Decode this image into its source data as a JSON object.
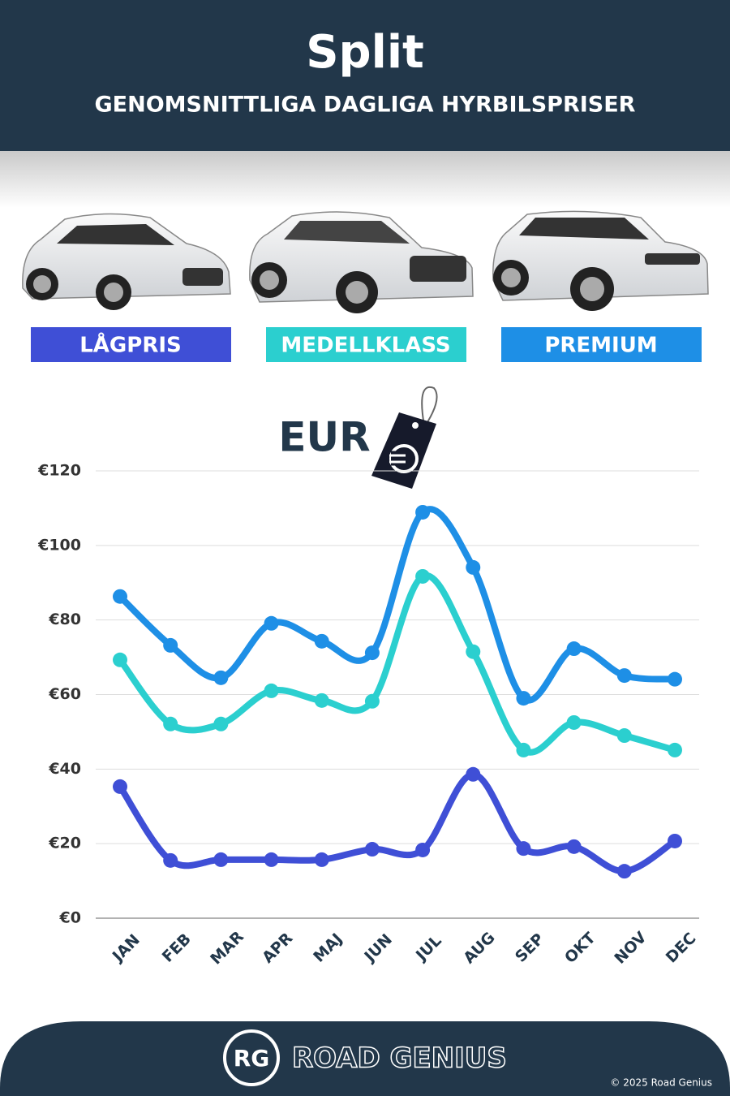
{
  "chart_data": {
    "type": "line",
    "title": "Split",
    "subtitle": "GENOMSNITTLIGA DAGLIGA HYRBILSPRISER",
    "unit_label": "EUR",
    "categories": [
      "JAN",
      "FEB",
      "MAR",
      "APR",
      "MAJ",
      "JUN",
      "JUL",
      "AUG",
      "SEP",
      "OKT",
      "NOV",
      "DEC"
    ],
    "series": [
      {
        "name": "LÅGPRIS",
        "color": "#3f4fd6",
        "values": [
          35.3,
          15.5,
          15.7,
          15.7,
          15.7,
          18.5,
          18.3,
          38.6,
          18.7,
          19.2,
          12.6,
          20.7
        ]
      },
      {
        "name": "MEDELLKLASS",
        "color": "#2bcfcf",
        "values": [
          69.3,
          52.1,
          52.1,
          61.0,
          58.4,
          58.2,
          91.7,
          71.5,
          45.1,
          52.5,
          49.0,
          45.1
        ]
      },
      {
        "name": "PREMIUM",
        "color": "#1e8fe6",
        "values": [
          86.3,
          73.2,
          64.5,
          79.1,
          74.3,
          71.2,
          108.9,
          94.1,
          59.0,
          72.3,
          65.1,
          64.1
        ]
      }
    ],
    "ylim": [
      0,
      120
    ],
    "yticks": [
      {
        "value": 0,
        "label": "€0"
      },
      {
        "value": 20,
        "label": "€20"
      },
      {
        "value": 40,
        "label": "€40"
      },
      {
        "value": 60,
        "label": "€60"
      },
      {
        "value": 80,
        "label": "€80"
      },
      {
        "value": 100,
        "label": "€100"
      },
      {
        "value": 120,
        "label": "€120"
      }
    ],
    "grid": true
  },
  "footer": {
    "logo": "RG",
    "brand": "ROAD GENIUS",
    "copyright": "© 2025 Road Genius"
  }
}
